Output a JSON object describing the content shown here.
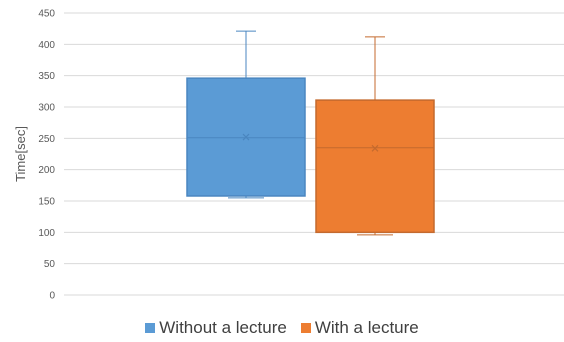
{
  "chart_data": {
    "type": "box",
    "ylabel": "Time[sec]",
    "ylim": [
      0,
      450
    ],
    "yticks": [
      0,
      50,
      100,
      150,
      200,
      250,
      300,
      350,
      400,
      450
    ],
    "grid": true,
    "legend_position": "bottom",
    "series": [
      {
        "name": "Without a lecture",
        "color": "#5b9bd5",
        "edge": "#4a86c0",
        "min": 155,
        "q1": 158,
        "median": 251,
        "q3": 346,
        "max": 421,
        "mean": 252
      },
      {
        "name": "With a lecture",
        "color": "#ed7d31",
        "edge": "#c46a2e",
        "min": 96,
        "q1": 100,
        "median": 235,
        "q3": 311,
        "max": 412,
        "mean": 234
      }
    ]
  }
}
